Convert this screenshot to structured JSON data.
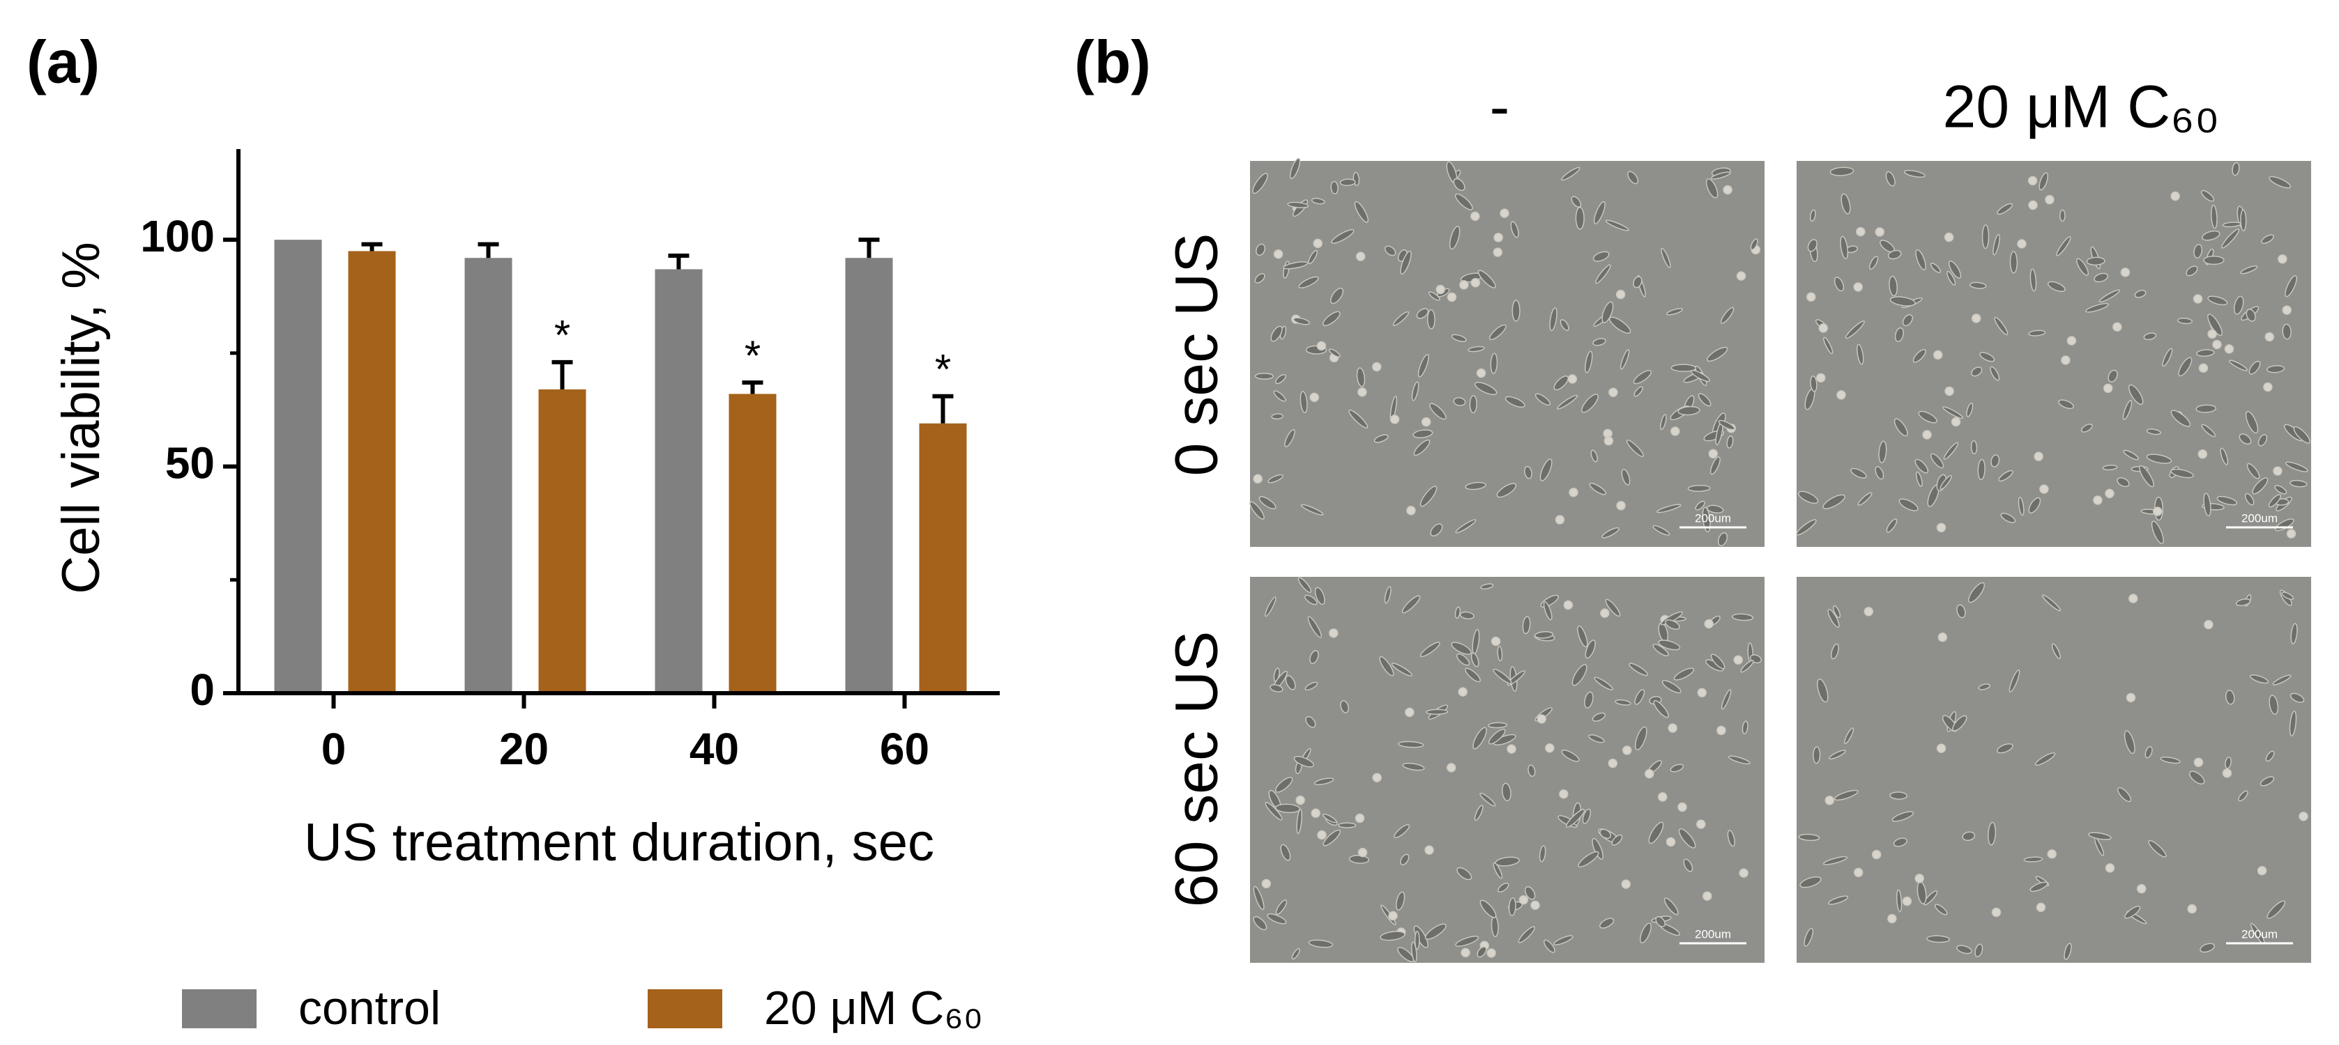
{
  "chart_data": {
    "type": "bar",
    "panel_label": "(a)",
    "x_label": "US treatment duration, sec",
    "y_label": "Cell viability, %",
    "categories": [
      "0",
      "20",
      "40",
      "60"
    ],
    "series": [
      {
        "name": "control",
        "color": "#808080",
        "values": [
          100,
          96,
          93.5,
          96
        ],
        "errors": [
          0,
          3,
          3,
          4
        ]
      },
      {
        "name": "20 μM C₆₀",
        "color": "#a5621a",
        "values": [
          97.5,
          67,
          66,
          59.5
        ],
        "errors": [
          1.5,
          6,
          2.5,
          6
        ],
        "markers": [
          null,
          "*",
          "*",
          "*"
        ]
      }
    ],
    "ylim": [
      0,
      120
    ],
    "yticks": [
      0,
      50,
      100
    ],
    "minor_yticks": [
      25,
      75
    ],
    "legend": "bottom"
  },
  "images": {
    "panel_label": "(b)",
    "columns": [
      "-",
      "20 μM C₆₀"
    ],
    "rows": [
      "0 sec US",
      "60 sec US"
    ],
    "scale_bar": "200um"
  }
}
